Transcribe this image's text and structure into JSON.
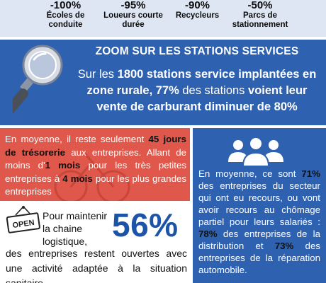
{
  "stats": [
    {
      "value": "-100%",
      "label": "Écoles de conduite"
    },
    {
      "value": "-95%",
      "label": "Loueurs courte durée"
    },
    {
      "value": "-90%",
      "label": "Recycleurs"
    },
    {
      "value": "-50%",
      "label": "Parcs de stationnement"
    }
  ],
  "zoom": {
    "title": "ZOOM SUR LES STATIONS SERVICES",
    "text_1": "Sur les ",
    "text_2": "1800 stations service implantées en zone rurale, 77%",
    "text_3": " des stations ",
    "text_4": "voient leur vente de carburant diminuer de 80%",
    "icon": "magnifier-icon"
  },
  "red_box": {
    "t1": "En moyenne, il reste seulement ",
    "t2": "45 jours de trésorerie",
    "t3": " aux entreprises. Allant de moins d'",
    "t4": "1 mois",
    "t5": " pour les très petites entreprises à ",
    "t6": "4 mois",
    "t7": " pour les plus grandes entreprises",
    "color": "#e0574b"
  },
  "blue_box": {
    "t1": "En moyenne, ce sont ",
    "t2": "71%",
    "t3": " des entreprises du secteur qui ont eu recours, ou vont avoir recours au chômage partiel pour leurs salariés : ",
    "t4": "78%",
    "t5": " des entreprises de la distribution et ",
    "t6": "73%",
    "t7": " des entreprises de la réparation automobile.",
    "icon": "people-icon",
    "color": "#2e61b0"
  },
  "open_section": {
    "sign_label": "OPEN",
    "lead": "Pour maintenir la chaine logistique,",
    "big_value": "56%",
    "text": "des entreprises restent ouvertes avec une activité adaptée à la situation sanitaire"
  }
}
